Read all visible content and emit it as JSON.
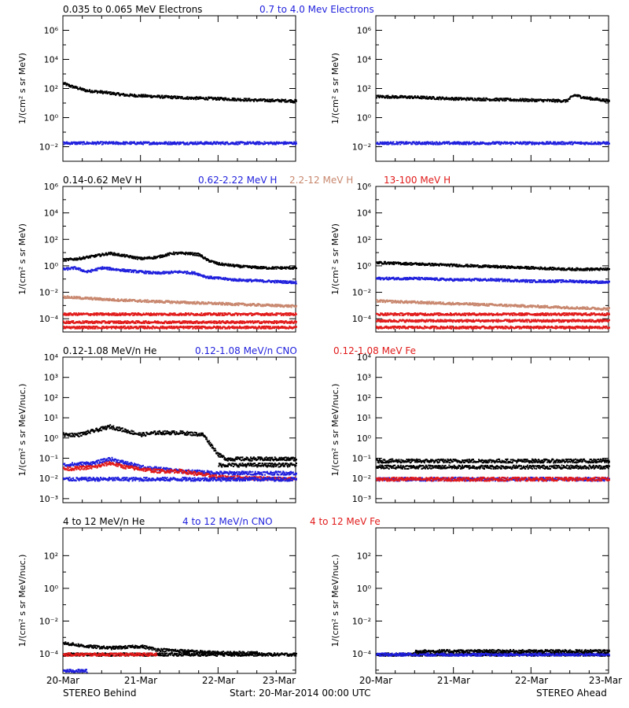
{
  "colors": {
    "black": "#000000",
    "blue": "#1f1fdd",
    "tan": "#c8876e",
    "red": "#e11a1a",
    "frame": "#000000"
  },
  "footer": {
    "left": "STEREO Behind",
    "center": "Start: 20-Mar-2014 00:00 UTC",
    "right": "STEREO Ahead"
  },
  "x_ticks": [
    "20-Mar",
    "21-Mar",
    "22-Mar",
    "23-Mar"
  ],
  "chart_data": [
    {
      "type": "scatter",
      "title": "",
      "legend": [
        {
          "text": "0.035 to 0.065 MeV Electrons",
          "color": "black"
        },
        {
          "text": "0.7 to 4.0 Mev Electrons",
          "color": "blue"
        }
      ],
      "ylabel": "1/(cm² s sr MeV)",
      "yscale": "log",
      "ylim_exp": [
        -3,
        7
      ],
      "yticks": [
        {
          "exp": -2,
          "label": "10⁻²"
        },
        {
          "exp": 0,
          "label": "10⁰"
        },
        {
          "exp": 2,
          "label": "10²"
        },
        {
          "exp": 4,
          "label": "10⁴"
        },
        {
          "exp": 6,
          "label": "10⁶"
        }
      ],
      "xlim_days": [
        0,
        3
      ],
      "panels": [
        {
          "name": "STEREO Behind",
          "series": [
            {
              "color": "black",
              "x": [
                0,
                0.1,
                0.3,
                0.5,
                0.8,
                1.2,
                1.6,
                2.0,
                2.5,
                3.0
              ],
              "y_exp": [
                2.4,
                2.2,
                1.9,
                1.8,
                1.6,
                1.5,
                1.4,
                1.35,
                1.25,
                1.2
              ]
            },
            {
              "color": "blue",
              "x": [
                0,
                3
              ],
              "y_exp": [
                -1.7,
                -1.7
              ]
            }
          ]
        },
        {
          "name": "STEREO Ahead",
          "series": [
            {
              "color": "black",
              "x": [
                0,
                0.5,
                1.0,
                1.5,
                2.0,
                2.45,
                2.55,
                2.7,
                3.0
              ],
              "y_exp": [
                1.5,
                1.45,
                1.35,
                1.3,
                1.25,
                1.2,
                1.6,
                1.4,
                1.2
              ]
            },
            {
              "color": "blue",
              "x": [
                0,
                3
              ],
              "y_exp": [
                -1.7,
                -1.7
              ]
            }
          ]
        }
      ]
    },
    {
      "type": "scatter",
      "title": "",
      "legend": [
        {
          "text": "0.14-0.62 MeV H",
          "color": "black"
        },
        {
          "text": "0.62-2.22 MeV H",
          "color": "blue"
        },
        {
          "text": "2.2-12 MeV H",
          "color": "tan"
        },
        {
          "text": "13-100 MeV H",
          "color": "red"
        }
      ],
      "ylabel": "1/(cm² s sr MeV)",
      "yscale": "log",
      "ylim_exp": [
        -5,
        6
      ],
      "yticks": [
        {
          "exp": -4,
          "label": "10⁻⁴"
        },
        {
          "exp": -2,
          "label": "10⁻²"
        },
        {
          "exp": 0,
          "label": "10⁰"
        },
        {
          "exp": 2,
          "label": "10²"
        },
        {
          "exp": 4,
          "label": "10⁴"
        },
        {
          "exp": 6,
          "label": "10⁶"
        }
      ],
      "xlim_days": [
        0,
        3
      ],
      "panels": [
        {
          "name": "STEREO Behind",
          "series": [
            {
              "color": "black",
              "x": [
                0,
                0.2,
                0.4,
                0.6,
                0.8,
                1.0,
                1.2,
                1.4,
                1.6,
                1.75,
                1.85,
                2.0,
                2.3,
                2.6,
                3.0
              ],
              "y_exp": [
                0.5,
                0.6,
                0.8,
                1.0,
                0.8,
                0.6,
                0.7,
                1.0,
                1.0,
                0.9,
                0.5,
                0.2,
                0.0,
                -0.1,
                -0.1
              ]
            },
            {
              "color": "blue",
              "x": [
                0,
                0.15,
                0.3,
                0.5,
                0.8,
                1.2,
                1.5,
                1.7,
                1.85,
                2.2,
                2.6,
                3.0
              ],
              "y_exp": [
                -0.2,
                -0.1,
                -0.4,
                -0.1,
                -0.3,
                -0.5,
                -0.4,
                -0.5,
                -0.8,
                -1.0,
                -1.1,
                -1.2
              ]
            },
            {
              "color": "tan",
              "x": [
                0,
                0.3,
                0.6,
                1.0,
                1.5,
                2.0,
                2.5,
                3.0
              ],
              "y_exp": [
                -2.3,
                -2.4,
                -2.5,
                -2.6,
                -2.7,
                -2.8,
                -2.9,
                -3.0
              ]
            },
            {
              "color": "red",
              "x": [
                0,
                3
              ],
              "y_exp": [
                -3.6,
                -3.6
              ]
            },
            {
              "color": "red",
              "x": [
                0,
                3
              ],
              "y_exp": [
                -4.2,
                -4.2
              ]
            },
            {
              "color": "red",
              "x": [
                0,
                3
              ],
              "y_exp": [
                -4.6,
                -4.6
              ]
            }
          ]
        },
        {
          "name": "STEREO Ahead",
          "series": [
            {
              "color": "black",
              "x": [
                0,
                0.5,
                1.0,
                1.5,
                2.0,
                2.5,
                3.0
              ],
              "y_exp": [
                0.3,
                0.2,
                0.1,
                0.0,
                -0.1,
                -0.2,
                -0.2
              ]
            },
            {
              "color": "blue",
              "x": [
                0,
                0.5,
                1.0,
                1.5,
                2.0,
                2.5,
                3.0
              ],
              "y_exp": [
                -0.9,
                -0.9,
                -1.0,
                -1.0,
                -1.1,
                -1.1,
                -1.2
              ]
            },
            {
              "color": "tan",
              "x": [
                0,
                0.5,
                1.0,
                1.5,
                2.0,
                2.5,
                3.0
              ],
              "y_exp": [
                -2.6,
                -2.7,
                -2.8,
                -2.9,
                -3.0,
                -3.1,
                -3.2
              ]
            },
            {
              "color": "red",
              "x": [
                0,
                3
              ],
              "y_exp": [
                -3.6,
                -3.6
              ]
            },
            {
              "color": "red",
              "x": [
                0,
                3
              ],
              "y_exp": [
                -4.1,
                -4.1
              ]
            },
            {
              "color": "red",
              "x": [
                0,
                3
              ],
              "y_exp": [
                -4.6,
                -4.6
              ]
            }
          ]
        }
      ]
    },
    {
      "type": "scatter",
      "title": "",
      "legend": [
        {
          "text": "0.12-1.08 MeV/n He",
          "color": "black"
        },
        {
          "text": "0.12-1.08 MeV/n CNO",
          "color": "blue"
        },
        {
          "text": "0.12-1.08 MeV Fe",
          "color": "red"
        }
      ],
      "ylabel": "1/(cm² s sr MeV/nuc.)",
      "yscale": "log",
      "ylim_exp": [
        -3.2,
        4
      ],
      "yticks": [
        {
          "exp": -3,
          "label": "10⁻³"
        },
        {
          "exp": -2,
          "label": "10⁻²"
        },
        {
          "exp": -1,
          "label": "10⁻¹"
        },
        {
          "exp": 0,
          "label": "10⁰"
        },
        {
          "exp": 1,
          "label": "10¹"
        },
        {
          "exp": 2,
          "label": "10²"
        },
        {
          "exp": 3,
          "label": "10³"
        },
        {
          "exp": 4,
          "label": "10⁴"
        }
      ],
      "xlim_days": [
        0,
        3
      ],
      "panels": [
        {
          "name": "STEREO Behind",
          "series": [
            {
              "color": "black",
              "x": [
                0,
                0.2,
                0.4,
                0.6,
                0.8,
                1.0,
                1.2,
                1.5,
                1.8,
                1.9,
                2.0,
                2.1,
                2.3,
                2.6,
                3.0
              ],
              "y_exp": [
                0.2,
                0.2,
                0.4,
                0.6,
                0.4,
                0.2,
                0.3,
                0.3,
                0.2,
                -0.3,
                -0.8,
                -1.0,
                -1.0,
                -1.0,
                -1.0
              ]
            },
            {
              "color": "blue",
              "x": [
                0,
                0.4,
                0.6,
                0.8,
                1.0,
                1.5,
                2.0,
                2.5,
                3.0
              ],
              "y_exp": [
                -1.3,
                -1.2,
                -1.0,
                -1.2,
                -1.4,
                -1.6,
                -1.7,
                -1.7,
                -1.7
              ]
            },
            {
              "color": "red",
              "x": [
                0,
                0.4,
                0.6,
                0.8,
                1.0,
                1.2,
                1.5,
                2.0,
                3.0
              ],
              "y_exp": [
                -1.5,
                -1.4,
                -1.2,
                -1.4,
                -1.5,
                -1.6,
                -1.6,
                -1.9,
                -2.0
              ]
            },
            {
              "color": "blue",
              "x": [
                0,
                3
              ],
              "y_exp": [
                -2.0,
                -2.0
              ]
            },
            {
              "color": "black",
              "x": [
                2.0,
                3.0
              ],
              "y_exp": [
                -1.3,
                -1.3
              ]
            }
          ]
        },
        {
          "name": "STEREO Ahead",
          "series": [
            {
              "color": "black",
              "x": [
                0,
                0.5,
                1.0,
                1.5,
                2.0,
                2.5,
                3.0
              ],
              "y_exp": [
                -1.1,
                -1.1,
                -1.1,
                -1.1,
                -1.1,
                -1.1,
                -1.1
              ]
            },
            {
              "color": "black",
              "x": [
                0,
                3
              ],
              "y_exp": [
                -1.4,
                -1.4
              ]
            },
            {
              "color": "blue",
              "x": [
                0,
                3
              ],
              "y_exp": [
                -2.0,
                -2.0
              ]
            },
            {
              "color": "red",
              "x": [
                0,
                3
              ],
              "y_exp": [
                -2.0,
                -2.0
              ]
            }
          ]
        }
      ]
    },
    {
      "type": "scatter",
      "title": "",
      "legend": [
        {
          "text": "4 to 12 MeV/n He",
          "color": "black"
        },
        {
          "text": "4 to 12 MeV/n CNO",
          "color": "blue"
        },
        {
          "text": "4 to 12 MeV Fe",
          "color": "red"
        }
      ],
      "ylabel": "1/(cm² s sr MeV/nuc.)",
      "yscale": "log",
      "ylim_exp": [
        -5.2,
        3.7
      ],
      "yticks": [
        {
          "exp": -4,
          "label": "10⁻⁴"
        },
        {
          "exp": -2,
          "label": "10⁻²"
        },
        {
          "exp": 0,
          "label": "10⁰"
        },
        {
          "exp": 2,
          "label": "10²"
        }
      ],
      "xlim_days": [
        0,
        3
      ],
      "panels": [
        {
          "name": "STEREO Behind",
          "series": [
            {
              "color": "black",
              "x": [
                0,
                0.3,
                0.6,
                1.0,
                1.2,
                1.6,
                2.0,
                2.5
              ],
              "y_exp": [
                -3.3,
                -3.5,
                -3.6,
                -3.5,
                -3.7,
                -3.8,
                -3.9,
                -3.9
              ]
            },
            {
              "color": "black",
              "x": [
                0,
                3
              ],
              "y_exp": [
                -4.0,
                -4.0
              ]
            },
            {
              "color": "red",
              "x": [
                0,
                1.2
              ],
              "y_exp": [
                -4.0,
                -4.0
              ]
            },
            {
              "color": "blue",
              "x": [
                0,
                0.3
              ],
              "y_exp": [
                -5.0,
                -5.0
              ]
            }
          ]
        },
        {
          "name": "STEREO Ahead",
          "series": [
            {
              "color": "black",
              "x": [
                0,
                3
              ],
              "y_exp": [
                -4.0,
                -4.0
              ]
            },
            {
              "color": "blue",
              "x": [
                0,
                3
              ],
              "y_exp": [
                -4.0,
                -4.0
              ]
            },
            {
              "color": "black",
              "x": [
                0.5,
                0.6,
                1.2,
                2.0,
                2.6,
                3.0
              ],
              "y_exp": [
                -3.8,
                -3.8,
                -3.8,
                -3.8,
                -3.8,
                -3.8
              ]
            }
          ]
        }
      ]
    }
  ]
}
